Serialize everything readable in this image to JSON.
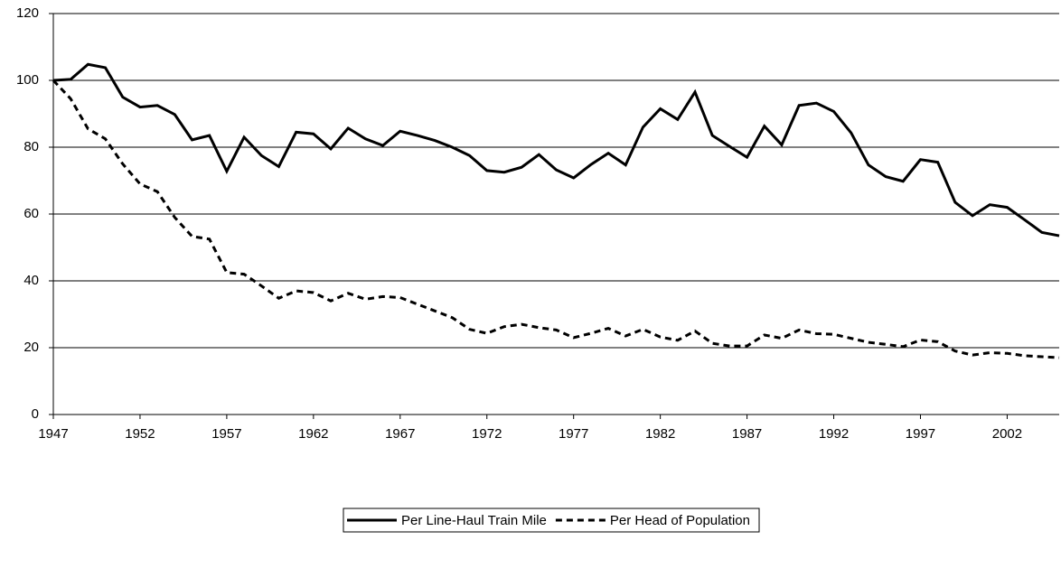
{
  "chart_data": {
    "type": "line",
    "x": [
      1947,
      1948,
      1949,
      1950,
      1951,
      1952,
      1953,
      1954,
      1955,
      1956,
      1957,
      1958,
      1959,
      1960,
      1961,
      1962,
      1963,
      1964,
      1965,
      1966,
      1967,
      1968,
      1969,
      1970,
      1971,
      1972,
      1973,
      1974,
      1975,
      1976,
      1977,
      1978,
      1979,
      1980,
      1981,
      1982,
      1983,
      1984,
      1985,
      1986,
      1987,
      1988,
      1989,
      1990,
      1991,
      1992,
      1993,
      1994,
      1995,
      1996,
      1997,
      1998,
      1999,
      2000,
      2001,
      2002,
      2003,
      2004,
      2005
    ],
    "series": [
      {
        "name": "Per Line-Haul Train Mile",
        "color": "#000000",
        "line_style": "solid",
        "values": [
          100,
          100.3,
          104.8,
          103.8,
          95,
          92,
          92.5,
          89.8,
          82.2,
          83.5,
          72.8,
          83,
          77.5,
          74.2,
          84.5,
          84,
          79.5,
          85.7,
          82.5,
          80.5,
          84.8,
          83.5,
          82,
          80,
          77.5,
          73,
          72.5,
          74,
          77.8,
          73.2,
          70.8,
          74.8,
          78.2,
          74.7,
          86,
          91.5,
          88.3,
          96.5,
          83.5,
          80.2,
          77,
          86.3,
          80.7,
          92.5,
          93.2,
          90.7,
          84.3,
          74.7,
          71.2,
          69.8,
          76.3,
          75.5,
          63.5,
          59.5,
          62.8,
          62,
          58.3,
          54.5,
          53.5
        ]
      },
      {
        "name": "Per Head of Population",
        "color": "#000000",
        "line_style": "dashed",
        "values": [
          100,
          94.5,
          85.5,
          82.5,
          75,
          69,
          66.7,
          59,
          53.3,
          52.5,
          42.5,
          42,
          38.5,
          34.8,
          37,
          36.5,
          34,
          36.3,
          34.5,
          35.3,
          35,
          33,
          31,
          29,
          25.5,
          24.3,
          26.3,
          27,
          26,
          25.3,
          23,
          24.3,
          25.8,
          23.5,
          25.5,
          23.2,
          22.2,
          25,
          21.3,
          20.5,
          20.5,
          23.8,
          22.8,
          25.3,
          24.2,
          24,
          22.8,
          21.6,
          21,
          20.3,
          22.3,
          21.8,
          19,
          17.8,
          18.5,
          18.3,
          17.6,
          17.3,
          17
        ]
      }
    ],
    "xlim": [
      1947,
      2005
    ],
    "xticks": [
      1947,
      1952,
      1957,
      1962,
      1967,
      1972,
      1977,
      1982,
      1987,
      1992,
      1997,
      2002
    ],
    "ylim": [
      0,
      120
    ],
    "yticks": [
      0,
      20,
      40,
      60,
      80,
      100,
      120
    ],
    "grid": true,
    "legend": "bottom"
  }
}
